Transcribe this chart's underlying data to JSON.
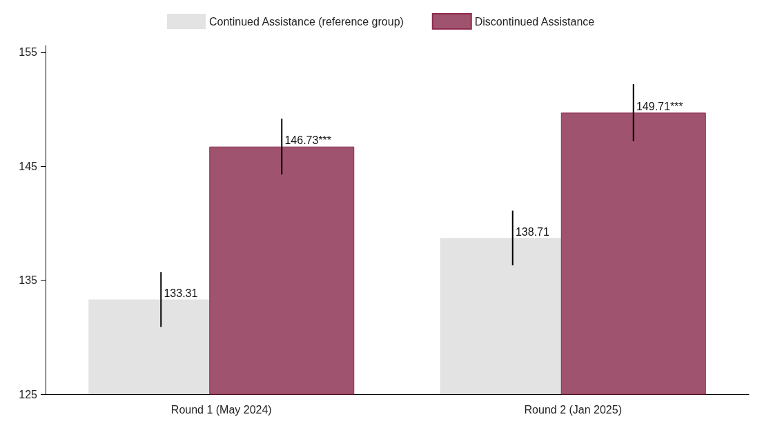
{
  "chart_data": {
    "type": "bar",
    "categories": [
      "Round 1 (May 2024)",
      "Round 2 (Jan 2025)"
    ],
    "series": [
      {
        "name": "Continued Assistance (reference group)",
        "color": "#e3e3e3",
        "values": [
          133.31,
          138.71
        ],
        "errors": [
          2.4,
          2.4
        ],
        "value_labels": [
          "133.31",
          "138.71"
        ]
      },
      {
        "name": "Discontinued Assistance",
        "color": "#a0536e",
        "values": [
          146.73,
          149.71
        ],
        "errors": [
          2.45,
          2.5
        ],
        "value_labels": [
          "146.73***",
          "149.71***"
        ]
      }
    ],
    "ylim": [
      125,
      155.6
    ],
    "yticks": [
      125,
      135,
      145,
      155
    ],
    "grid": false,
    "legend": "top"
  }
}
